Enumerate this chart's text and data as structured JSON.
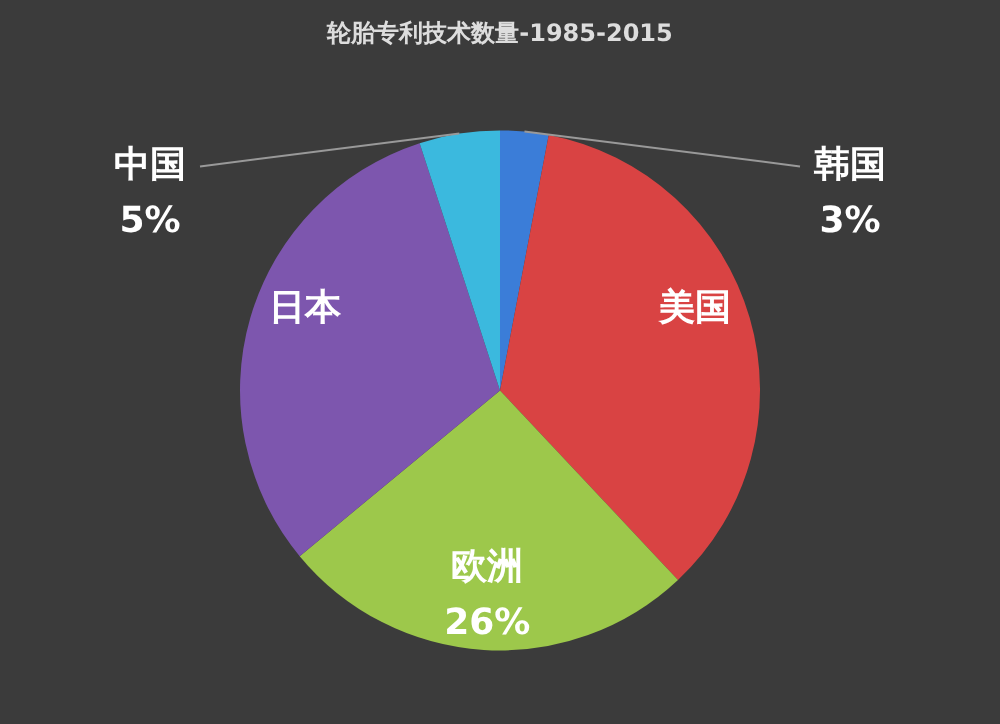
{
  "chart_data": {
    "type": "pie",
    "title": "轮胎专利技术数量-1985-2015",
    "categories": [
      "韩国",
      "美国",
      "欧洲",
      "日本",
      "中国"
    ],
    "values": [
      3,
      35,
      26,
      31,
      5
    ],
    "colors": [
      "#3b7dd8",
      "#d94343",
      "#9dc84b",
      "#7d56ae",
      "#3bb9de"
    ],
    "value_labels": [
      "3%",
      null,
      "26%",
      null,
      "5%"
    ],
    "legend": false
  }
}
